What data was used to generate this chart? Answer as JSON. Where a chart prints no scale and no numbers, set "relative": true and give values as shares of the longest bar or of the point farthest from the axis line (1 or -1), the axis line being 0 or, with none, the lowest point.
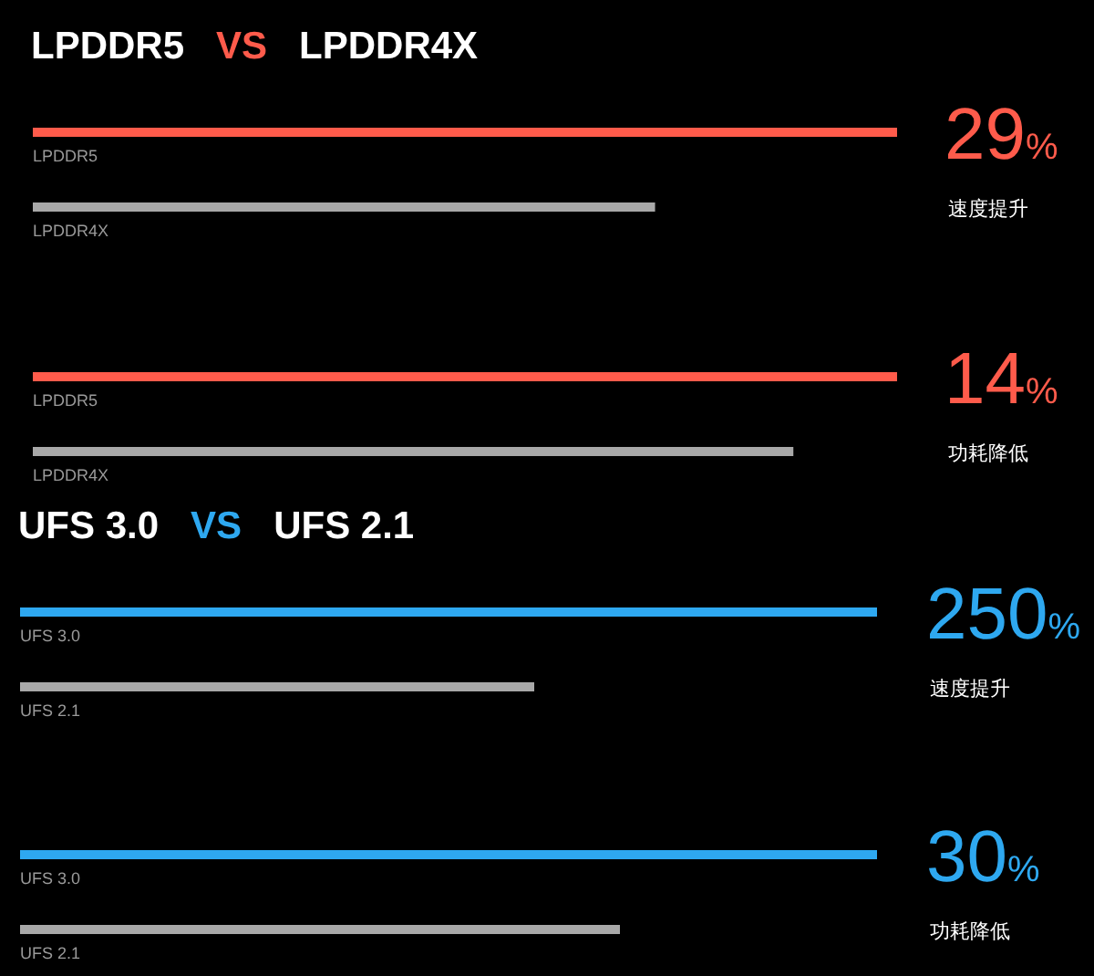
{
  "chart_data": [
    {
      "type": "bar",
      "orientation": "horizontal",
      "relative": true,
      "title": "LPDDR5 VS LPDDR4X",
      "categories": [
        "LPDDR5",
        "LPDDR4X"
      ],
      "values": [
        1,
        0.72
      ],
      "colors": [
        "#ff5b4b",
        "#a8a8a8"
      ],
      "annotations": [
        "29%",
        "速度提升"
      ]
    },
    {
      "type": "bar",
      "orientation": "horizontal",
      "relative": true,
      "categories": [
        "LPDDR5",
        "LPDDR4X"
      ],
      "values": [
        1,
        0.88
      ],
      "colors": [
        "#ff5b4b",
        "#a8a8a8"
      ],
      "annotations": [
        "14%",
        "功耗降低"
      ]
    },
    {
      "type": "bar",
      "orientation": "horizontal",
      "relative": true,
      "title": "UFS 3.0 VS UFS 2.1",
      "categories": [
        "UFS 3.0",
        "UFS 2.1"
      ],
      "values": [
        1,
        0.6
      ],
      "colors": [
        "#2ea8f0",
        "#a8a8a8"
      ],
      "annotations": [
        "250%",
        "速度提升"
      ]
    },
    {
      "type": "bar",
      "orientation": "horizontal",
      "relative": true,
      "categories": [
        "UFS 3.0",
        "UFS 2.1"
      ],
      "values": [
        1,
        0.7
      ],
      "colors": [
        "#2ea8f0",
        "#a8a8a8"
      ],
      "annotations": [
        "30%",
        "功耗降低"
      ]
    }
  ]
}
